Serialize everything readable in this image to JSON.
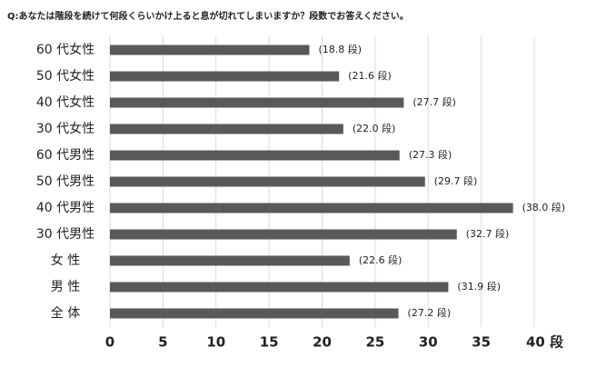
{
  "chart_data": {
    "type": "bar",
    "orientation": "horizontal",
    "title": "Q:あなたは階段を続けて何段くらいかけ上ると息が切れてしまいますか？段数でお答えください。",
    "categories": [
      "60 代女性",
      "50 代女性",
      "40 代女性",
      "30 代女性",
      "60 代男性",
      "50 代男性",
      "40 代男性",
      "30 代男性",
      "女 性",
      "男 性",
      "全 体"
    ],
    "values": [
      18.8,
      21.6,
      27.7,
      22.0,
      27.3,
      29.7,
      38.0,
      32.7,
      22.6,
      31.9,
      27.2
    ],
    "value_labels": [
      "(18.8 段)",
      "(21.6 段)",
      "(27.7 段)",
      "(22.0 段)",
      "(27.3 段)",
      "(29.7 段)",
      "(38.0 段)",
      "(32.7 段)",
      "(22.6 段)",
      "(31.9 段)",
      "(27.2 段)"
    ],
    "color": "#595959",
    "xlim": [
      0,
      40
    ],
    "xticks": [
      0,
      5,
      10,
      15,
      20,
      25,
      30,
      35,
      {
        "value": 40,
        "label": "40 段"
      }
    ],
    "grid": true
  }
}
